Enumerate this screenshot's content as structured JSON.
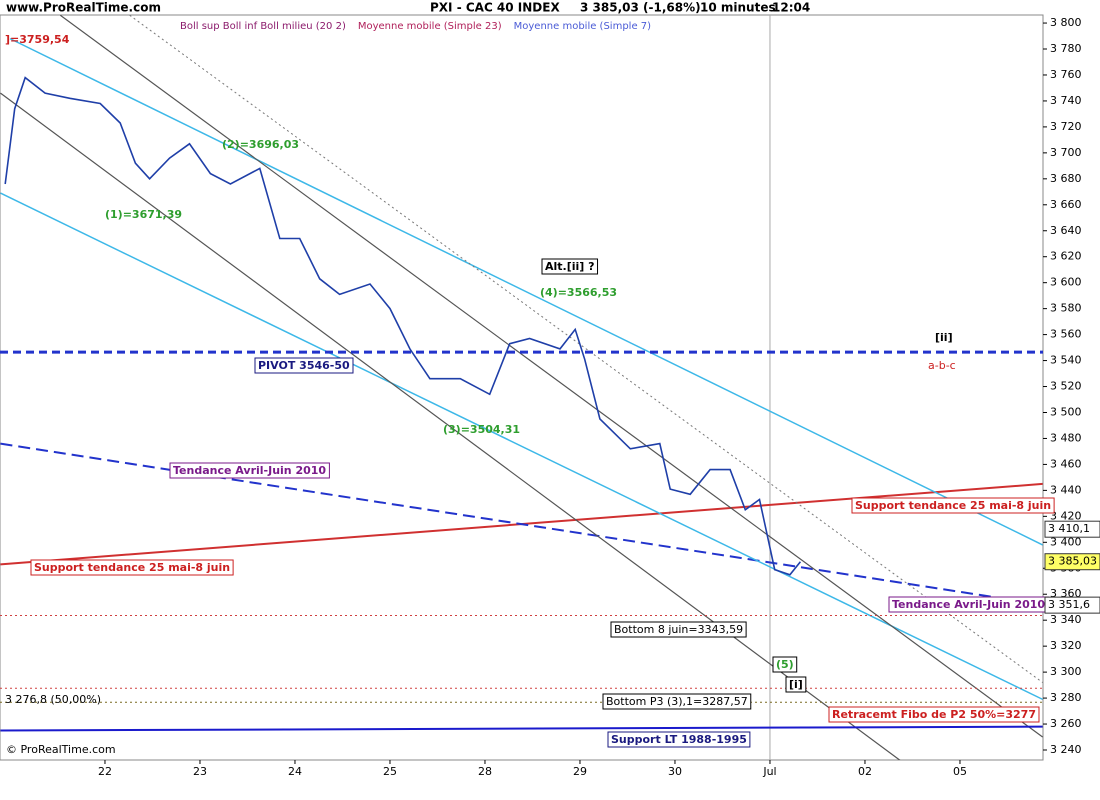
{
  "header": {
    "site": "www.ProRealTime.com",
    "title": "PXI - CAC 40 INDEX",
    "quote": "3 385,03 (-1,68%)",
    "timeframe": "10 minutes",
    "time": "12:04",
    "footer": "© ProRealTime.com"
  },
  "chart_data": {
    "type": "line",
    "indicators": [
      {
        "text": "Boll sup Boll inf Boll milieu (20 2)",
        "color": "#8b1a6b"
      },
      {
        "text": "Moyenne mobile (Simple 23)",
        "color": "#b0205a"
      },
      {
        "text": "Moyenne mobile (Simple 7)",
        "color": "#4a5bd6"
      }
    ],
    "xlim": [
      -1.105,
      9.874
    ],
    "ylim": [
      3232.3,
      3806.2
    ],
    "xticks": [
      {
        "value": 0,
        "label": "22"
      },
      {
        "value": 1,
        "label": "23"
      },
      {
        "value": 2,
        "label": "24"
      },
      {
        "value": 3,
        "label": "25"
      },
      {
        "value": 4,
        "label": "28"
      },
      {
        "value": 5,
        "label": "29"
      },
      {
        "value": 6,
        "label": "30"
      },
      {
        "value": 7,
        "label": "Jul"
      },
      {
        "value": 8,
        "label": "02"
      },
      {
        "value": 9,
        "label": "05"
      }
    ],
    "yticks": [
      {
        "value": 3240,
        "label": "3 240"
      },
      {
        "value": 3260,
        "label": "3 260"
      },
      {
        "value": 3280,
        "label": "3 280"
      },
      {
        "value": 3300,
        "label": "3 300"
      },
      {
        "value": 3320,
        "label": "3 320"
      },
      {
        "value": 3340,
        "label": "3 340"
      },
      {
        "value": 3360,
        "label": "3 360"
      },
      {
        "value": 3380,
        "label": "3 380"
      },
      {
        "value": 3400,
        "label": "3 400"
      },
      {
        "value": 3420,
        "label": "3 420"
      },
      {
        "value": 3440,
        "label": "3 440"
      },
      {
        "value": 3460,
        "label": "3 460"
      },
      {
        "value": 3480,
        "label": "3 480"
      },
      {
        "value": 3500,
        "label": "3 500"
      },
      {
        "value": 3520,
        "label": "3 520"
      },
      {
        "value": 3540,
        "label": "3 540"
      },
      {
        "value": 3560,
        "label": "3 560"
      },
      {
        "value": 3580,
        "label": "3 580"
      },
      {
        "value": 3600,
        "label": "3 600"
      },
      {
        "value": 3620,
        "label": "3 620"
      },
      {
        "value": 3640,
        "label": "3 640"
      },
      {
        "value": 3660,
        "label": "3 660"
      },
      {
        "value": 3680,
        "label": "3 680"
      },
      {
        "value": 3700,
        "label": "3 700"
      },
      {
        "value": 3720,
        "label": "3 720"
      },
      {
        "value": 3740,
        "label": "3 740"
      },
      {
        "value": 3760,
        "label": "3 760"
      },
      {
        "value": 3780,
        "label": "3 780"
      },
      {
        "value": 3800,
        "label": "3 800"
      }
    ],
    "vgrid_at": 7,
    "series": [
      {
        "color": "#1f3fa8",
        "x": [
          -1.05,
          -0.95,
          -0.84,
          -0.63,
          -0.37,
          -0.05,
          0.16,
          0.32,
          0.47,
          0.68,
          0.89,
          1.11,
          1.32,
          1.63,
          1.84,
          2.05,
          2.26,
          2.47,
          2.79,
          3.0,
          3.21,
          3.42,
          3.74,
          4.05,
          4.26,
          4.47,
          4.79,
          4.95,
          5.05,
          5.21,
          5.53,
          5.84,
          5.95,
          6.16,
          6.37,
          6.58,
          6.74,
          6.89,
          7.05,
          7.21,
          7.32
        ],
        "values": [
          3676,
          3734,
          3758,
          3746,
          3742,
          3738,
          3723,
          3692,
          3680,
          3696,
          3707,
          3684,
          3676,
          3688,
          3634,
          3634,
          3603,
          3591,
          3599,
          3580,
          3549,
          3526,
          3526,
          3514,
          3553,
          3557,
          3549,
          3564,
          3541,
          3495,
          3472,
          3476,
          3441,
          3437,
          3456,
          3456,
          3425,
          3433,
          3379,
          3375,
          3385.03
        ]
      }
    ],
    "levels": [
      {
        "value": 3546.5,
        "color": "#2233cc",
        "style": "dashed",
        "width": 3
      },
      {
        "value": 3343.59,
        "color": "#d04040",
        "style": "dotted",
        "width": 1
      },
      {
        "value": 3287.57,
        "color": "#d04040",
        "style": "dotted",
        "width": 1
      },
      {
        "value": 3276.8,
        "color": "#7a6a20",
        "style": "dotted",
        "width": 1
      }
    ],
    "trend_lines": [
      {
        "x": [
          -1.1,
          9.87
        ],
        "y": [
          3383,
          3445
        ],
        "color": "#d03030",
        "style": "solid",
        "width": 2
      },
      {
        "x": [
          -1.1,
          9.87
        ],
        "y": [
          3476,
          3352
        ],
        "color": "#2233cc",
        "style": "dashed",
        "width": 2
      },
      {
        "x": [
          -1.0,
          9.87
        ],
        "y": [
          3788,
          3398
        ],
        "color": "#3db8e8",
        "style": "solid",
        "width": 1.5
      },
      {
        "x": [
          -1.1,
          9.87
        ],
        "y": [
          3669,
          3279
        ],
        "color": "#3db8e8",
        "style": "solid",
        "width": 1.5
      },
      {
        "x": [
          -0.47,
          9.87
        ],
        "y": [
          3806,
          3250
        ],
        "color": "#555555",
        "style": "solid",
        "width": 1.2
      },
      {
        "x": [
          -1.1,
          8.37
        ],
        "y": [
          3746,
          3232
        ],
        "color": "#555555",
        "style": "solid",
        "width": 1.2
      },
      {
        "x": [
          0.26,
          9.87
        ],
        "y": [
          3806,
          3292
        ],
        "color": "#777777",
        "style": "dotted",
        "width": 1
      },
      {
        "x": [
          -1.1,
          9.87
        ],
        "y": [
          3255,
          3258
        ],
        "color": "#1a1acc",
        "style": "solid",
        "width": 2
      }
    ],
    "annotations": [
      {
        "text": "]=3759,54",
        "color": "#cc2020"
      },
      {
        "text": "(1)=3671,39",
        "color": "#2e9e2e"
      },
      {
        "text": "(2)=3696,03",
        "color": "#2e9e2e"
      },
      {
        "text": "(3)=3504,31",
        "color": "#2e9e2e"
      },
      {
        "text": "(4)=3566,53",
        "color": "#2e9e2e"
      },
      {
        "text": "(5)",
        "color": "#2e9e2e"
      },
      {
        "text": "Alt.[ii] ?",
        "color": "#000000"
      },
      {
        "text": "PIVOT 3546-50",
        "color": "#1a1a80"
      },
      {
        "text": "Tendance Avril-Juin 2010",
        "color": "#7a1a8a"
      },
      {
        "text": "Tendance Avril-Juin 2010",
        "color": "#7a1a8a"
      },
      {
        "text": "Support tendance 25 mai-8 juin",
        "color": "#cc2020"
      },
      {
        "text": "Support tendance 25 mai-8 juin",
        "color": "#cc2020"
      },
      {
        "text": "Bottom 8 juin=3343,59",
        "color": "#000000"
      },
      {
        "text": "Bottom P3 (3),1=3287,57",
        "color": "#000000"
      },
      {
        "text": "Support LT 1988-1995",
        "color": "#1a1a80"
      },
      {
        "text": "Retracemt Fibo de P2 50%=3277",
        "color": "#cc2020"
      },
      {
        "text": "3 276,8 (50,00%)",
        "color": "#000000"
      },
      {
        "text": "[ii]",
        "color": "#000000"
      },
      {
        "text": "a-b-c",
        "color": "#cc2020"
      },
      {
        "text": "[i]",
        "color": "#000000"
      }
    ],
    "price_tags": [
      {
        "value": 3410.1,
        "label": "3 410,1",
        "color": "#ffffff"
      },
      {
        "value": 3385.03,
        "label": "3 385,03",
        "color": "#ffff66"
      },
      {
        "value": 3351.6,
        "label": "3 351,6",
        "color": "#ffffff"
      }
    ]
  }
}
